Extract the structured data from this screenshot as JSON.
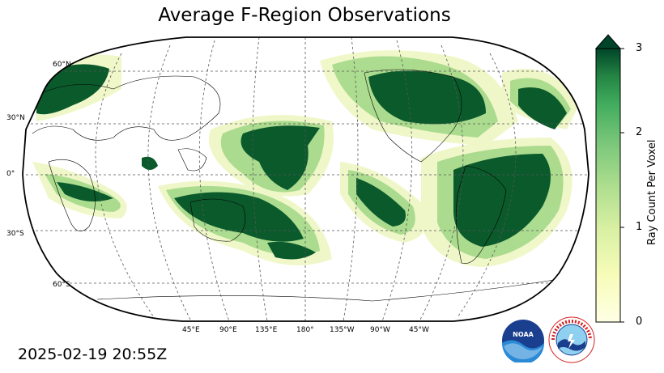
{
  "title": "Average F-Region Observations",
  "timestamp": "2025-02-19 20:55Z",
  "colorbar": {
    "label": "Ray Count Per Voxel",
    "ticks": [
      "0",
      "1",
      "2",
      "3"
    ],
    "min": 0,
    "max": 3,
    "extend": "max",
    "colormap": "Greens-like (light yellow to dark green)",
    "low_color": "#ffffe5",
    "high_color": "#004529"
  },
  "map": {
    "projection": "Robinson (central meridian 180°)",
    "lat_labels": [
      "60°N",
      "30°N",
      "0°",
      "30°S",
      "60°S"
    ],
    "lon_labels": [
      "45°E",
      "90°E",
      "135°E",
      "180°",
      "135°W",
      "90°W",
      "45°W"
    ],
    "gridlines": true
  },
  "logos": {
    "noaa": "NOAA",
    "nws": "NATIONAL WEATHER SERVICE"
  }
}
